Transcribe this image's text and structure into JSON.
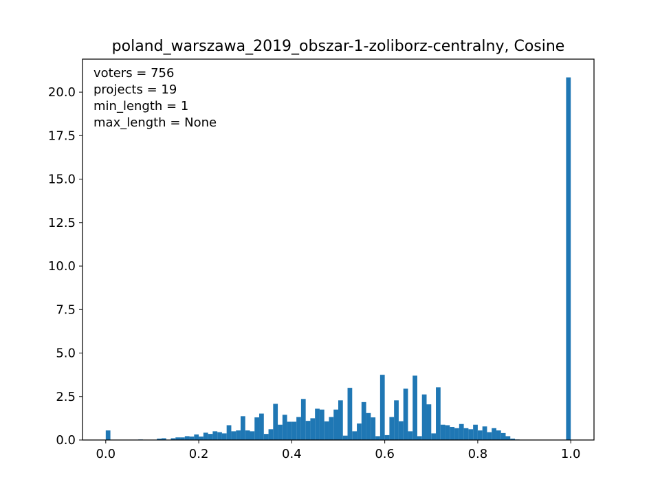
{
  "chart_data": {
    "type": "bar",
    "title": "poland_warszawa_2019_obszar-1-zoliborz-centralny, Cosine",
    "xlabel": "",
    "ylabel": "",
    "xlim": [
      -0.05,
      1.05
    ],
    "ylim": [
      0,
      21.9
    ],
    "xticks": [
      0.0,
      0.2,
      0.4,
      0.6,
      0.8,
      1.0
    ],
    "xtick_labels": [
      "0.0",
      "0.2",
      "0.4",
      "0.6",
      "0.8",
      "1.0"
    ],
    "yticks": [
      0,
      2.5,
      5,
      7.5,
      10,
      12.5,
      15,
      17.5,
      20
    ],
    "ytick_labels": [
      "0.0",
      "2.5",
      "5.0",
      "7.5",
      "10.0",
      "12.5",
      "15.0",
      "17.5",
      "20.0"
    ],
    "bar_color": "#1f77b4",
    "grid": false,
    "annotations": [
      "voters = 756",
      "projects = 19",
      "min_length = 1",
      "max_length = None"
    ],
    "bin_width": 0.01,
    "bins": [
      [
        0.0,
        0.55
      ],
      [
        0.05,
        0.02
      ],
      [
        0.06,
        0.02
      ],
      [
        0.07,
        0.03
      ],
      [
        0.11,
        0.08
      ],
      [
        0.12,
        0.1
      ],
      [
        0.14,
        0.1
      ],
      [
        0.15,
        0.15
      ],
      [
        0.16,
        0.15
      ],
      [
        0.17,
        0.22
      ],
      [
        0.18,
        0.2
      ],
      [
        0.19,
        0.32
      ],
      [
        0.2,
        0.2
      ],
      [
        0.21,
        0.42
      ],
      [
        0.22,
        0.35
      ],
      [
        0.23,
        0.5
      ],
      [
        0.24,
        0.45
      ],
      [
        0.25,
        0.38
      ],
      [
        0.26,
        0.85
      ],
      [
        0.27,
        0.5
      ],
      [
        0.28,
        0.55
      ],
      [
        0.29,
        1.37
      ],
      [
        0.3,
        0.55
      ],
      [
        0.31,
        0.5
      ],
      [
        0.32,
        1.3
      ],
      [
        0.33,
        1.52
      ],
      [
        0.34,
        0.35
      ],
      [
        0.35,
        0.62
      ],
      [
        0.36,
        2.08
      ],
      [
        0.37,
        0.88
      ],
      [
        0.38,
        1.45
      ],
      [
        0.39,
        1.05
      ],
      [
        0.4,
        1.05
      ],
      [
        0.41,
        1.32
      ],
      [
        0.42,
        2.36
      ],
      [
        0.43,
        1.1
      ],
      [
        0.44,
        1.25
      ],
      [
        0.45,
        1.8
      ],
      [
        0.46,
        1.75
      ],
      [
        0.47,
        1.07
      ],
      [
        0.48,
        1.32
      ],
      [
        0.49,
        1.75
      ],
      [
        0.5,
        2.28
      ],
      [
        0.51,
        0.25
      ],
      [
        0.52,
        3.0
      ],
      [
        0.53,
        0.5
      ],
      [
        0.54,
        0.95
      ],
      [
        0.55,
        2.18
      ],
      [
        0.56,
        1.55
      ],
      [
        0.57,
        1.3
      ],
      [
        0.58,
        0.22
      ],
      [
        0.59,
        3.75
      ],
      [
        0.6,
        0.28
      ],
      [
        0.61,
        1.32
      ],
      [
        0.62,
        2.28
      ],
      [
        0.63,
        1.08
      ],
      [
        0.64,
        2.95
      ],
      [
        0.65,
        0.5
      ],
      [
        0.66,
        3.7
      ],
      [
        0.67,
        0.22
      ],
      [
        0.68,
        2.62
      ],
      [
        0.69,
        2.05
      ],
      [
        0.7,
        0.38
      ],
      [
        0.71,
        3.03
      ],
      [
        0.72,
        0.88
      ],
      [
        0.73,
        0.85
      ],
      [
        0.74,
        0.75
      ],
      [
        0.75,
        0.68
      ],
      [
        0.76,
        0.92
      ],
      [
        0.77,
        0.68
      ],
      [
        0.78,
        0.62
      ],
      [
        0.79,
        0.88
      ],
      [
        0.8,
        0.55
      ],
      [
        0.81,
        0.78
      ],
      [
        0.82,
        0.45
      ],
      [
        0.83,
        0.68
      ],
      [
        0.84,
        0.55
      ],
      [
        0.85,
        0.4
      ],
      [
        0.86,
        0.22
      ],
      [
        0.87,
        0.08
      ],
      [
        0.88,
        0.03
      ],
      [
        0.99,
        20.85
      ]
    ]
  }
}
